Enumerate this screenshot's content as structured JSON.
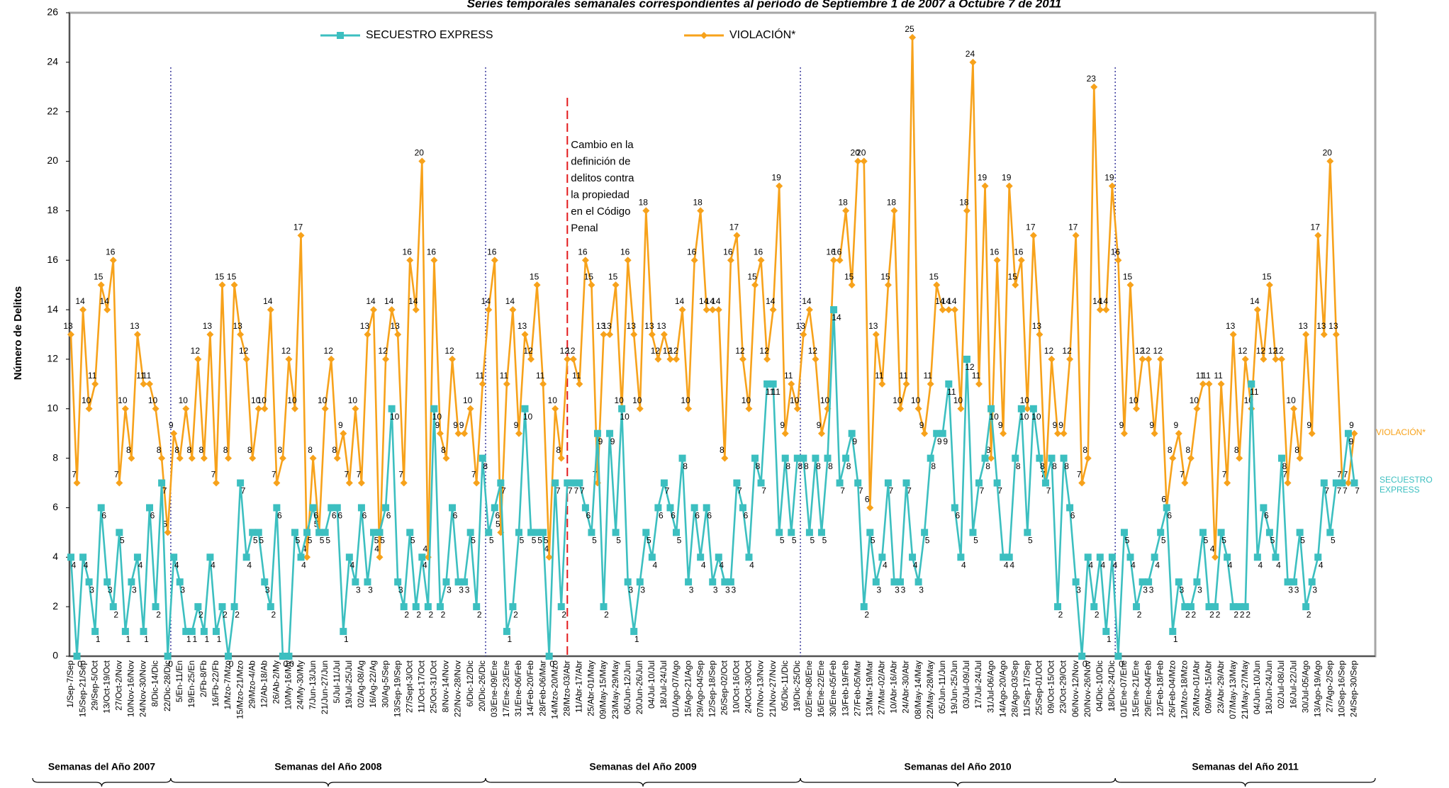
{
  "chart_data": {
    "type": "line",
    "title": "Series temporales semanales correspondientes al período de Septiembre 1 de 2007 a Octubre 7 de 2011",
    "y_label": "Número de Delitos",
    "annotation": [
      "Cambio en la",
      "definición de",
      "delitos contra",
      "la propiedad",
      "en el Código",
      "Penal"
    ],
    "year_groups": [
      "Semanas del Año 2007",
      "Semanas del Año 2008",
      "Semanas del Año 2009",
      "Semanas del Año 2010",
      "Semanas del Año 2011"
    ],
    "legend": "top",
    "grid": false,
    "ylim": [
      0,
      26
    ],
    "yticks": [
      0,
      2,
      4,
      6,
      8,
      10,
      12,
      14,
      16,
      18,
      20,
      22,
      24,
      26
    ],
    "categories": [
      "1/Sep-7/Sep",
      null,
      "15/Sep-21/Sep",
      null,
      "29/Sep-5/Oct",
      null,
      "13/Oct-19/Oct",
      null,
      "27/Oct-2/Nov",
      null,
      "10/Nov-16/Nov",
      null,
      "24/Nov-30/Nov",
      null,
      "8/Dic-14/Dic",
      null,
      "22/Dic-28/Dic",
      null,
      "5/En-11/En",
      null,
      "19/En-25/En",
      null,
      "2/Fb-8/Fb",
      null,
      "16/Fb-22/Fb",
      null,
      "1/Mzo-7/Mzo",
      null,
      "15/Mzo-21/Mzo",
      null,
      "29/Mzo-4/Ab",
      null,
      "12/Ab-18/Ab",
      null,
      "26/Ab-2/My",
      null,
      "10/My-16/My",
      null,
      "24/My-30/My",
      null,
      "7/Jun-13/Jun",
      null,
      "21/Jun-27/Jun",
      null,
      "5/Jul-11/Jul",
      null,
      "19/Jul-25/Jul",
      null,
      "02/Ag-08/Ag",
      null,
      "16/Ag-22/Ag",
      null,
      "30/Ag-5/Sep",
      null,
      "13/Sep-19/Sep",
      null,
      "27/Sept-3/Oct",
      null,
      "11/Oct-17/Oct",
      null,
      "25/Oct-31/Oct",
      null,
      "8/Nov-14/Nov",
      null,
      "22/Nov-28/Nov",
      null,
      "6/Dic-12/Dic",
      null,
      "20/Dic-26/Dic",
      null,
      "03/Ene-09/Ene",
      null,
      "17/Ene-23/Ene",
      null,
      "31/Ene-06/Feb",
      null,
      "14/Feb-20/Feb",
      null,
      "28/Feb-06/Mar",
      null,
      "14/Mzo-20/Mzo",
      null,
      "28/Mzo-03/Abr",
      null,
      "11/Abr-17/Abr",
      null,
      "25/Abr-01/May",
      null,
      "09/May-15/May",
      null,
      "23/May-29/May",
      null,
      "06/Jun-12/Jun",
      null,
      "20/Jun-26/Jun",
      null,
      "04/Jul-10/Jul",
      null,
      "18/Jul-24/Jul",
      null,
      "01/Ago-07/Ago",
      null,
      "15/Ago-21/Ago",
      null,
      "29/Ago-04/Sep",
      null,
      "12/Sep-18/Sep",
      null,
      "26/Sep-02/Oct",
      null,
      "10/Oct-16/Oct",
      null,
      "24/Oct-30/Oct",
      null,
      "07/Nov-13/Nov",
      null,
      "21/Nov-27/Nov",
      null,
      "05/Dic-11/Dic",
      null,
      "19/Dic-25/Dic",
      null,
      "02/Ene-08/Ene",
      null,
      "16/Ene-22/Ene",
      null,
      "30/Ene-05/Feb",
      null,
      "13/Feb-19/Feb",
      null,
      "27/Feb-05/Mar",
      null,
      "13/Mar-19/Mar",
      null,
      "27/Mar-02/Abr",
      null,
      "10/Abr-16/Abr",
      null,
      "24/Abr-30/Abr",
      null,
      "08/May-14/May",
      null,
      "22/May-28/May",
      null,
      "05/Jun-11/Jun",
      null,
      "19/Jun-25/Jun",
      null,
      "03/Jul-09/Jul",
      null,
      "17/Jul-24/Jul",
      null,
      "31/Jul-06/Ago",
      null,
      "14/Ago-20/Ago",
      null,
      "28/Ago-03/Sep",
      null,
      "11/Sep-17/Sep",
      null,
      "25/Sep-01/Oct",
      null,
      "09/Oct-15/Oct",
      null,
      "23/Oct-29/Oct",
      null,
      "06/Nov-12/Nov",
      null,
      "20/Nov-26/Nov",
      null,
      "04/Dic-10/Dic",
      null,
      "18/Dic-24/Dic",
      null,
      "01/Ene-07/Ene",
      null,
      "15/Ene-21/Ene",
      null,
      "29/Ene-04/Feb",
      null,
      "12/Feb-18/Feb",
      null,
      "26/Feb-04/Mzo",
      null,
      "12/Mzo-18/Mzo",
      null,
      "26/Mzo-01/Abr",
      null,
      "09/Abr-15/Abr",
      null,
      "23/Abr-29/Abr",
      null,
      "07/May-13/May",
      null,
      "21/May-27/May",
      null,
      "04/Jun-10/Jun",
      null,
      "18/Jun-24/Jun",
      null,
      "02/Jul-08/Jul",
      null,
      "16/Jul-22/Jul",
      null,
      "30/Jul-05/Ago",
      null,
      "13/Ago-19/Ago",
      null,
      "27/Ago-2/Sep",
      null,
      "10/Sep-16/Sep",
      null,
      "24/Sep-30/Sep"
    ],
    "series": [
      {
        "name": "SECUESTRO EXPRESS",
        "color": "#3cbfc0",
        "marker": "square",
        "values": [
          4,
          0,
          4,
          3,
          1,
          6,
          3,
          2,
          5,
          1,
          3,
          4,
          1,
          6,
          2,
          7,
          0,
          4,
          3,
          1,
          1,
          2,
          1,
          4,
          1,
          2,
          0,
          2,
          7,
          4,
          5,
          5,
          3,
          2,
          6,
          0,
          0,
          5,
          4,
          5,
          6,
          5,
          5,
          6,
          6,
          1,
          4,
          3,
          6,
          3,
          5,
          5,
          6,
          10,
          3,
          2,
          5,
          2,
          4,
          2,
          10,
          2,
          3,
          6,
          3,
          3,
          5,
          2,
          8,
          5,
          6,
          7,
          1,
          2,
          5,
          10,
          5,
          5,
          5,
          0,
          7,
          2,
          7,
          7,
          7,
          6,
          5,
          9,
          2,
          9,
          5,
          10,
          3,
          1,
          3,
          5,
          4,
          6,
          7,
          6,
          5,
          8,
          3,
          6,
          4,
          6,
          3,
          4,
          3,
          3,
          7,
          6,
          4,
          8,
          7,
          11,
          11,
          5,
          8,
          5,
          8,
          8,
          5,
          8,
          5,
          8,
          14,
          7,
          8,
          9,
          7,
          2,
          5,
          3,
          4,
          7,
          3,
          3,
          7,
          4,
          3,
          5,
          8,
          9,
          9,
          11,
          6,
          4,
          12,
          5,
          7,
          8,
          10,
          7,
          4,
          4,
          8,
          10,
          5,
          10,
          8,
          7,
          8,
          2,
          8,
          6,
          3,
          0,
          4,
          2,
          4,
          1,
          4,
          0,
          5,
          4,
          2,
          3,
          3,
          4,
          5,
          6,
          1,
          3,
          2,
          2,
          3,
          5,
          2,
          2,
          5,
          4,
          2,
          2,
          2,
          11,
          4,
          6,
          5,
          4,
          8,
          3,
          3,
          5,
          2,
          3,
          4,
          7,
          5,
          7,
          7,
          9,
          7
        ]
      },
      {
        "name": "VIOLACIÓN*",
        "color": "#f7a21b",
        "marker": "diamond",
        "values": [
          13,
          7,
          14,
          10,
          11,
          15,
          14,
          16,
          7,
          10,
          8,
          13,
          11,
          11,
          10,
          8,
          5,
          9,
          8,
          10,
          8,
          12,
          8,
          13,
          7,
          15,
          8,
          15,
          13,
          12,
          8,
          10,
          10,
          14,
          7,
          8,
          12,
          10,
          17,
          4,
          8,
          5,
          10,
          12,
          8,
          9,
          7,
          10,
          7,
          13,
          14,
          4,
          12,
          14,
          13,
          7,
          16,
          14,
          20,
          4,
          16,
          9,
          8,
          12,
          9,
          9,
          10,
          7,
          11,
          14,
          16,
          5,
          11,
          14,
          9,
          13,
          12,
          15,
          11,
          4,
          10,
          8,
          12,
          12,
          11,
          16,
          15,
          7,
          13,
          13,
          15,
          10,
          16,
          13,
          10,
          18,
          13,
          12,
          13,
          12,
          12,
          14,
          10,
          16,
          18,
          14,
          14,
          14,
          8,
          16,
          17,
          12,
          10,
          15,
          16,
          12,
          14,
          19,
          9,
          11,
          10,
          13,
          14,
          12,
          9,
          10,
          16,
          16,
          18,
          15,
          20,
          20,
          6,
          13,
          11,
          15,
          18,
          10,
          11,
          25,
          10,
          9,
          11,
          15,
          14,
          14,
          14,
          10,
          18,
          24,
          11,
          19,
          8,
          16,
          9,
          19,
          15,
          16,
          10,
          17,
          13,
          7,
          12,
          9,
          9,
          12,
          17,
          7,
          8,
          23,
          14,
          14,
          19,
          16,
          9,
          15,
          10,
          12,
          12,
          9,
          12,
          6,
          8,
          9,
          7,
          8,
          10,
          11,
          11,
          4,
          11,
          7,
          13,
          8,
          12,
          10,
          14,
          12,
          15,
          12,
          12,
          7,
          10,
          8,
          13,
          9,
          17,
          13,
          20,
          13,
          7,
          7,
          9
        ]
      }
    ]
  }
}
